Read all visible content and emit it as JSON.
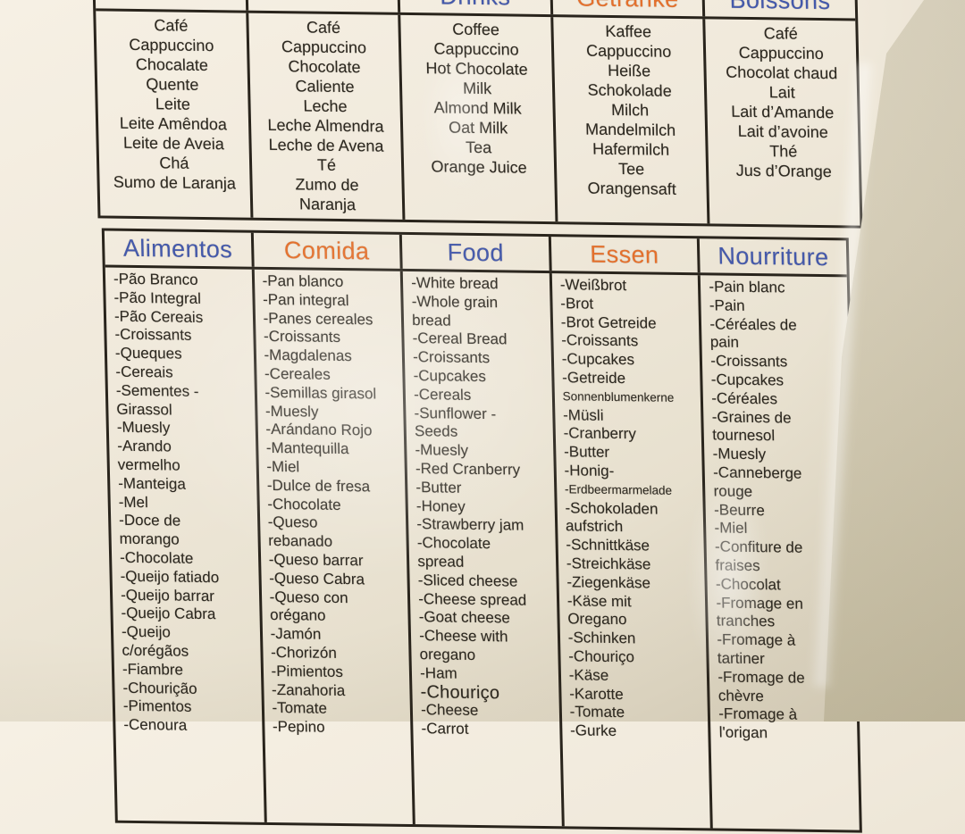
{
  "colors": {
    "blue": "#4459ab",
    "orange": "#e4702c",
    "ink": "#2c2820",
    "border": "#29241c",
    "sheet": "#efe8d9",
    "wall": "#d2cab2"
  },
  "drinks_table": {
    "headers": [
      {
        "label": "",
        "color": "blue"
      },
      {
        "label": "",
        "color": "orange"
      },
      {
        "label": "Drinks",
        "color": "blue"
      },
      {
        "label": "Getränke",
        "color": "orange"
      },
      {
        "label": "Boissons",
        "color": "blue"
      }
    ],
    "columns": [
      {
        "lang": "portuguese",
        "lines": [
          "Café",
          "Cappuccino",
          "Chocalate",
          "Quente",
          "Leite",
          "Leite Amêndoa",
          "Leite de Aveia",
          "Chá",
          "Sumo de Laranja"
        ]
      },
      {
        "lang": "spanish",
        "lines": [
          "Café",
          "Cappuccino",
          "Chocolate",
          "Caliente",
          "Leche",
          "Leche Almendra",
          "Leche de Avena",
          "Té",
          "Zumo de",
          "Naranja"
        ]
      },
      {
        "lang": "english",
        "lines": [
          "Coffee",
          "Cappuccino",
          "Hot Chocolate",
          "Milk",
          "Almond Milk",
          "Oat Milk",
          "Tea",
          "Orange Juice"
        ]
      },
      {
        "lang": "german",
        "lines": [
          "Kaffee",
          "Cappuccino",
          "Heiße",
          "Schokolade",
          "Milch",
          "Mandelmilch",
          "Hafermilch",
          "Tee",
          "Orangensaft"
        ]
      },
      {
        "lang": "french",
        "lines": [
          "Café",
          "Cappuccino",
          "Chocolat chaud",
          "Lait",
          "Lait d’Amande",
          "Lait d’avoine",
          "Thé",
          "Jus d’Orange"
        ]
      }
    ]
  },
  "food_table": {
    "headers": [
      {
        "label": "Alimentos",
        "color": "blue"
      },
      {
        "label": "Comida",
        "color": "orange"
      },
      {
        "label": "Food",
        "color": "blue"
      },
      {
        "label": "Essen",
        "color": "orange"
      },
      {
        "label": "Nourriture",
        "color": "blue"
      }
    ],
    "columns": [
      {
        "lang": "portuguese",
        "lines": [
          "-Pão Branco",
          "-Pão Integral",
          "-Pão Cereais",
          "-Croissants",
          "-Queques",
          "-Cereais",
          "-Sementes -",
          "Girassol",
          "-Muesly",
          "-Arando",
          "vermelho",
          "-Manteiga",
          "-Mel",
          "-Doce de",
          "morango",
          "-Chocolate",
          "-Queijo fatiado",
          "-Queijo barrar",
          "-Queijo Cabra",
          "-Queijo",
          "c/orégãos",
          "-Fiambre",
          "-Chourição",
          "-Pimentos",
          "-Cenoura"
        ]
      },
      {
        "lang": "spanish",
        "lines": [
          "-Pan blanco",
          "-Pan integral",
          "-Panes cereales",
          "-Croissants",
          "-Magdalenas",
          "-Cereales",
          "-Semillas girasol",
          "-Muesly",
          "-Arándano Rojo",
          "-Mantequilla",
          "-Miel",
          "-Dulce de fresa",
          "-Chocolate",
          "-Queso",
          "rebanado",
          "-Queso barrar",
          "-Queso Cabra",
          "-Queso con",
          "orégano",
          "-Jamón",
          "-Chorizón",
          "-Pimientos",
          "-Zanahoria",
          "-Tomate",
          "-Pepino"
        ]
      },
      {
        "lang": "english",
        "lines": [
          "-White bread",
          "-Whole grain",
          "bread",
          "-Cereal Bread",
          "-Croissants",
          "-Cupcakes",
          "-Cereals",
          "-Sunflower -",
          "Seeds",
          "-Muesly",
          "-Red Cranberry",
          "-Butter",
          "-Honey",
          "-Strawberry jam",
          "-Chocolate",
          "spread",
          "-Sliced cheese",
          "-Cheese spread",
          "-Goat cheese",
          "-Cheese with",
          "oregano",
          "-Ham",
          {
            "text": "-Chouriço",
            "style": "big"
          },
          "-Cheese",
          "-Carrot"
        ]
      },
      {
        "lang": "german",
        "lines": [
          "-Weißbrot",
          "-Brot",
          "-Brot Getreide",
          "-Croissants",
          "-Cupcakes",
          "-Getreide",
          {
            "text": "Sonnenblumenkerne",
            "style": "small"
          },
          "-Müsli",
          "-Cranberry",
          "-Butter",
          "-Honig-",
          {
            "text": "-Erdbeermarmelade",
            "style": "small"
          },
          "-Schokoladen",
          "aufstrich",
          "-Schnittkäse",
          "-Streichkäse",
          "-Ziegenkäse",
          "-Käse mit",
          "Oregano",
          "-Schinken",
          "-Chouriço",
          "-Käse",
          "-Karotte",
          "-Tomate",
          "-Gurke"
        ]
      },
      {
        "lang": "french",
        "lines": [
          "-Pain blanc",
          "-Pain",
          "-Céréales de",
          "pain",
          "-Croissants",
          "-Cupcakes",
          "-Céréales",
          "-Graines de",
          "tournesol",
          "-Muesly",
          "-Canneberge",
          "rouge",
          "-Beurre",
          "-Miel",
          "-Confiture de",
          "fraises",
          "-Chocolat",
          "-Fromage en",
          "tranches",
          "-Fromage à",
          "tartiner",
          "-Fromage de",
          "chèvre",
          "-Fromage à",
          "l'origan"
        ]
      }
    ]
  }
}
